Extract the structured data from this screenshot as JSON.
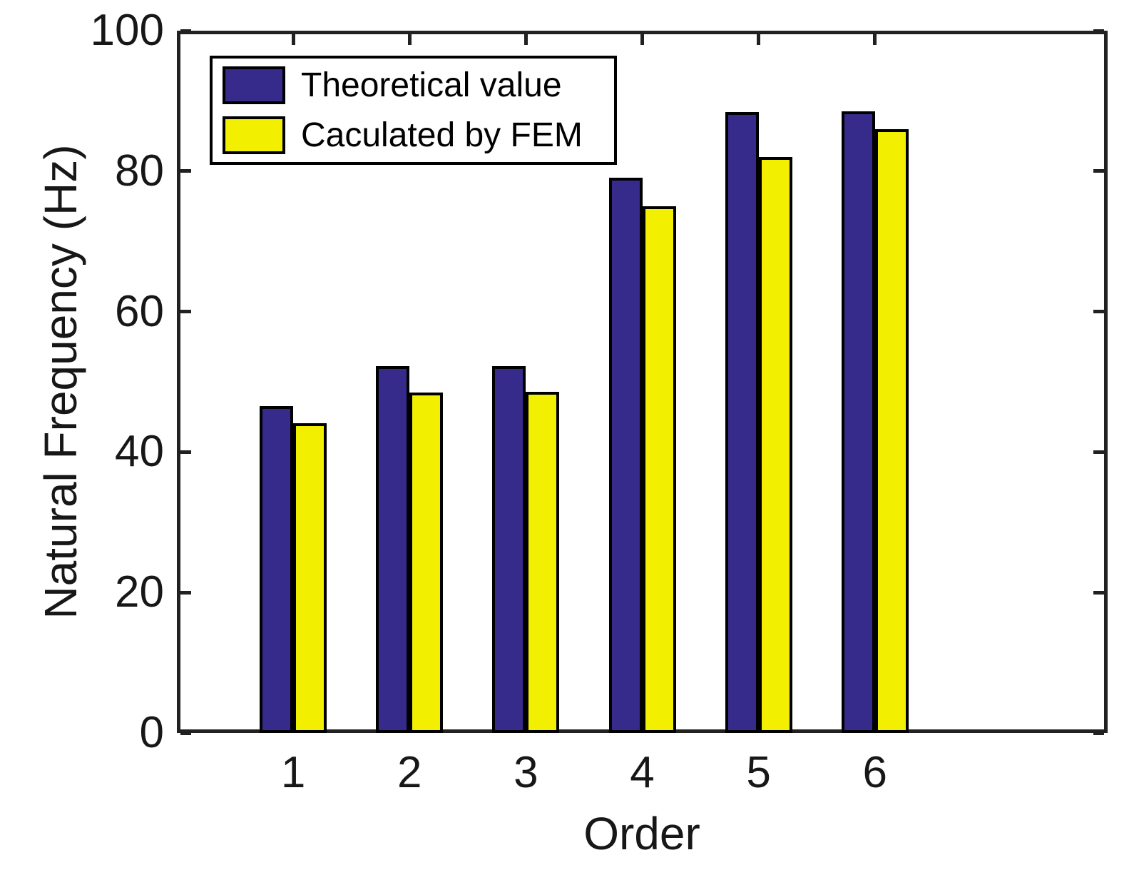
{
  "figure": {
    "background": "#ffffff",
    "axis_line_color": "#212121",
    "text_color": "#171717"
  },
  "chart_data": {
    "type": "bar",
    "title": "",
    "xlabel": "Order",
    "ylabel": "Natural Frequency (Hz)",
    "categories": [
      "1",
      "2",
      "3",
      "4",
      "5",
      "6"
    ],
    "series": [
      {
        "name": "Theoretical value",
        "color": "#362A8B",
        "values": [
          46.5,
          52.2,
          52.2,
          79.1,
          88.4,
          88.5
        ]
      },
      {
        "name": "Caculated by FEM",
        "color": "#F2F000",
        "values": [
          44.1,
          48.5,
          48.6,
          75.0,
          82.0,
          86.0
        ]
      }
    ],
    "bar_edge_color": "#000000",
    "yticks": [
      0,
      20,
      40,
      60,
      80,
      100
    ],
    "ylim": [
      0,
      100
    ],
    "x_axis_divisions": 8,
    "grid": false,
    "legend_position": "top-left",
    "legend_border": true,
    "tick_direction": "in",
    "box": true
  }
}
